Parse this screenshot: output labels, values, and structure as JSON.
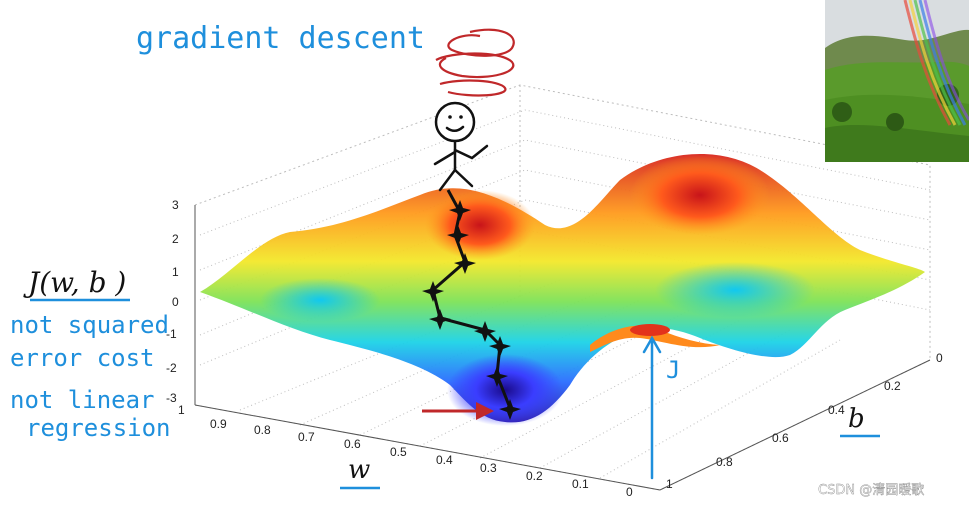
{
  "title": "gradient descent",
  "cost_label": "J(w, b )",
  "notes": [
    "not squared",
    "error cost",
    "not linear",
    "regression"
  ],
  "surface_label": "J",
  "axes": {
    "w_label": "w",
    "b_label": "b",
    "z_ticks": [
      "3",
      "2",
      "1",
      "0",
      "-1",
      "-2",
      "-3"
    ],
    "w_ticks": [
      "1",
      "0.9",
      "0.8",
      "0.7",
      "0.6",
      "0.5",
      "0.4",
      "0.3",
      "0.2",
      "0.1",
      "0"
    ],
    "b_ticks": [
      "0",
      "0.2",
      "0.4",
      "0.6",
      "0.8",
      "1"
    ]
  },
  "watermark": "CSDN @清园暖歌",
  "colors": {
    "ink": "#1e8fdc",
    "spin": "#c0282a",
    "path": "#111111"
  }
}
